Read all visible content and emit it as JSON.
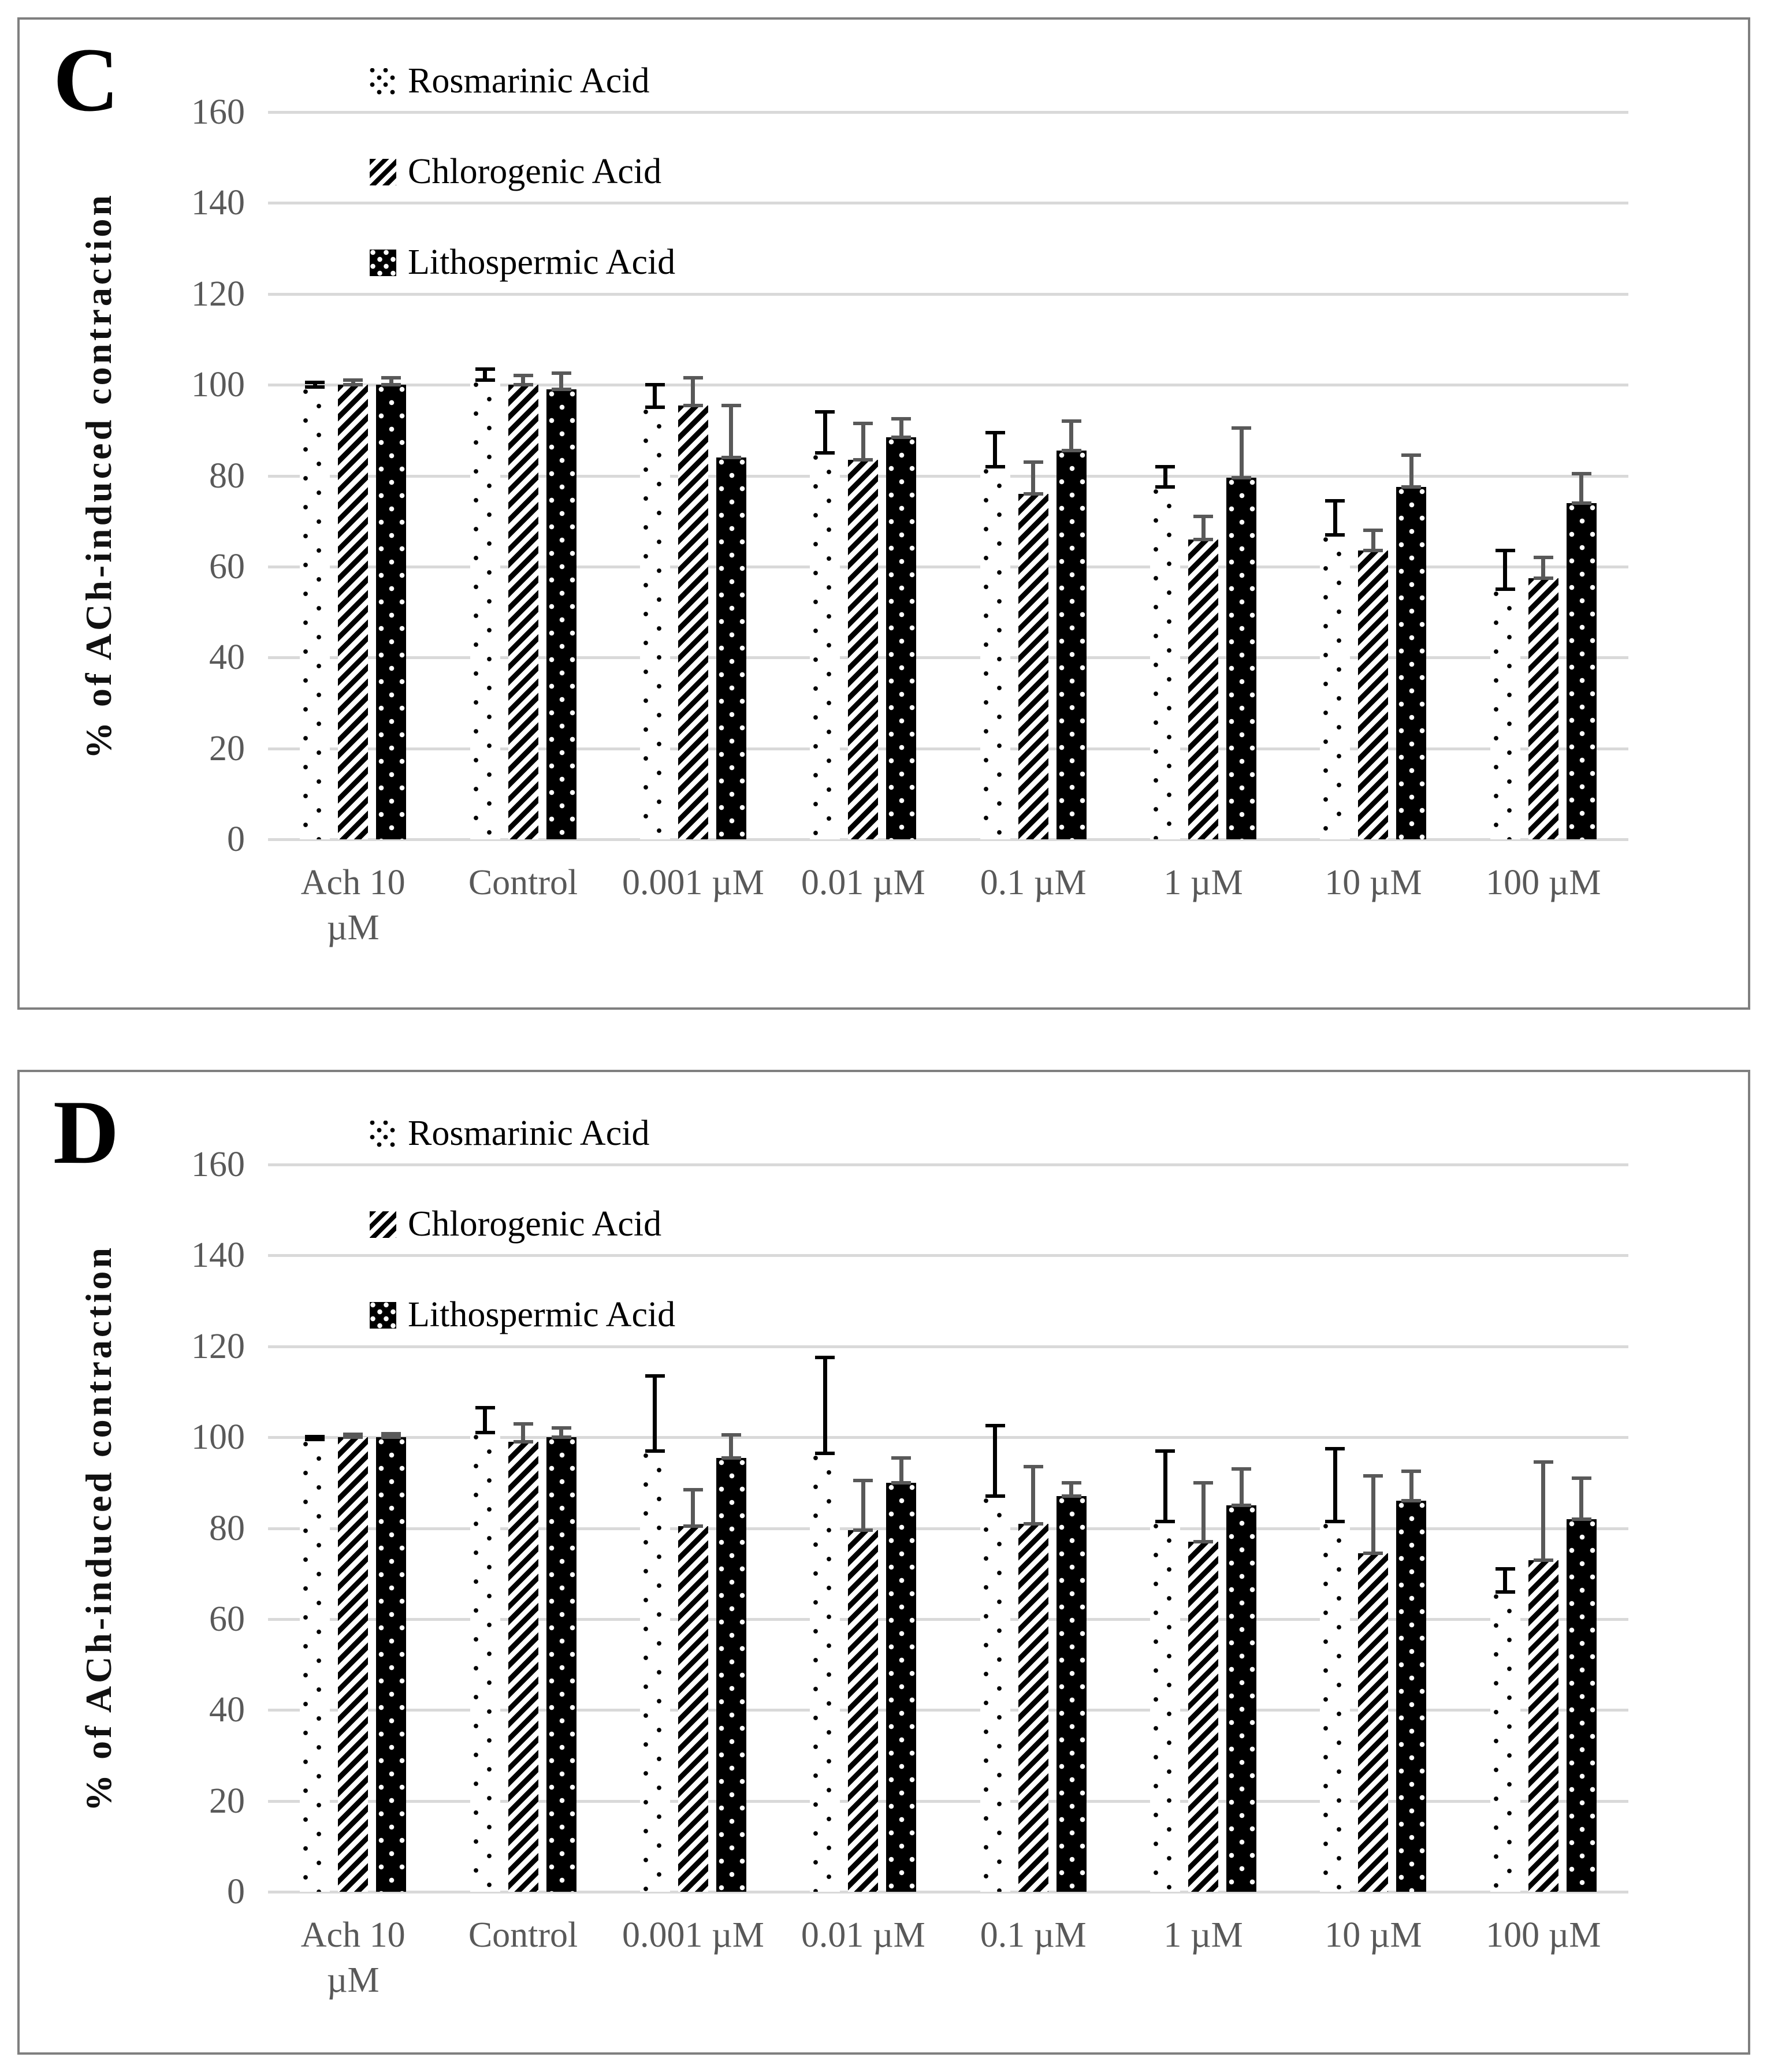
{
  "figure": {
    "background_color": "#ffffff",
    "panel_border_color": "#7f7f7f",
    "grid_color": "#d9d9d9",
    "axis_text_color": "#595959",
    "legend_text_color": "#000000"
  },
  "chart_data": [
    {
      "type": "bar",
      "panel_label": "C",
      "title": "",
      "xlabel": "",
      "ylabel": "% of ACh-induced contraction",
      "ylim": [
        0,
        160
      ],
      "yticks": [
        0,
        20,
        40,
        60,
        80,
        100,
        120,
        140,
        160
      ],
      "grid": true,
      "legend_position": "top-left-inside",
      "error_bars": "plus-direction-with-caps",
      "categories": [
        "Ach 10\nµM",
        "Control",
        "0.001 µM",
        "0.01 µM",
        "0.1 µM",
        "1 µM",
        "10 µM",
        "100 µM"
      ],
      "series": [
        {
          "name": "Rosmarinic Acid",
          "pattern": "dots-black-on-white",
          "error_color": "#000000",
          "values": [
            99.5,
            101,
            95,
            85,
            82,
            77.5,
            67,
            55
          ],
          "errors": [
            1,
            2.5,
            5,
            9,
            7.5,
            4.5,
            7.5,
            8.5
          ]
        },
        {
          "name": "Chlorogenic Acid",
          "pattern": "diagonal-stripes",
          "error_color": "#595959",
          "values": [
            100,
            100,
            95.5,
            83.5,
            76,
            66,
            63.5,
            57.5
          ],
          "errors": [
            1,
            2,
            6,
            8,
            7,
            5,
            4.5,
            4.5
          ]
        },
        {
          "name": "Lithospermic Acid",
          "pattern": "dots-white-on-black",
          "error_color": "#595959",
          "values": [
            100,
            99,
            84,
            88.5,
            85.5,
            79.5,
            77.5,
            74
          ],
          "errors": [
            1.5,
            3.5,
            11.5,
            4,
            6.5,
            11,
            7,
            6.5
          ]
        }
      ]
    },
    {
      "type": "bar",
      "panel_label": "D",
      "title": "",
      "xlabel": "",
      "ylabel": "% of ACh-induced contraction",
      "ylim": [
        0,
        160
      ],
      "yticks": [
        0,
        20,
        40,
        60,
        80,
        100,
        120,
        140,
        160
      ],
      "grid": true,
      "legend_position": "top-left-inside",
      "error_bars": "plus-direction-with-caps",
      "categories": [
        "Ach 10\nµM",
        "Control",
        "0.001 µM",
        "0.01 µM",
        "0.1 µM",
        "1 µM",
        "10 µM",
        "100 µM"
      ],
      "series": [
        {
          "name": "Rosmarinic Acid",
          "pattern": "dots-black-on-white",
          "error_color": "#000000",
          "values": [
            99.5,
            101,
            97,
            96.5,
            87,
            81.5,
            81.5,
            66
          ],
          "errors": [
            0.7,
            5.5,
            16.5,
            21,
            15.5,
            15.5,
            16,
            5
          ]
        },
        {
          "name": "Chlorogenic Acid",
          "pattern": "diagonal-stripes",
          "error_color": "#595959",
          "values": [
            100,
            99,
            80.5,
            79.5,
            81,
            77,
            74.5,
            73
          ],
          "errors": [
            0.7,
            4,
            8,
            11,
            12.5,
            13,
            17,
            21.5
          ]
        },
        {
          "name": "Lithospermic Acid",
          "pattern": "dots-white-on-black",
          "error_color": "#595959",
          "values": [
            100,
            100,
            95.5,
            90,
            87,
            85,
            86,
            82
          ],
          "errors": [
            0.8,
            2,
            5,
            5.5,
            3,
            8,
            6.5,
            9
          ]
        }
      ]
    }
  ]
}
